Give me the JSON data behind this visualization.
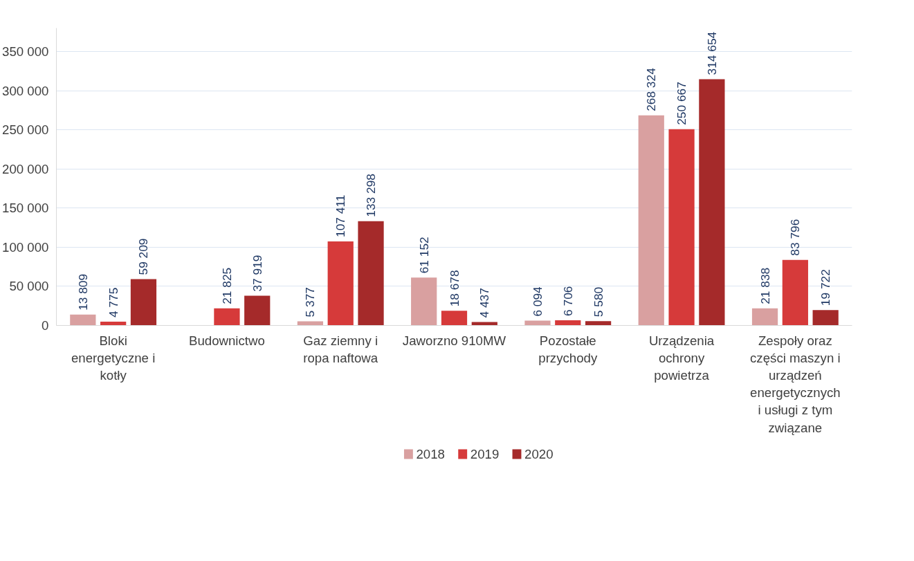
{
  "chart_data": {
    "type": "bar",
    "categories": [
      "Bloki energetyczne i kotły",
      "Budownictwo",
      "Gaz ziemny i ropa naftowa",
      "Jaworzno 910MW",
      "Pozostałe przychody",
      "Urządzenia ochrony powietrza",
      "Zespoły oraz części maszyn i urządzeń energetycznych i usługi z tym związane"
    ],
    "series": [
      {
        "name": "2018",
        "color": "#d9a0a0",
        "values": [
          13809,
          null,
          5377,
          61152,
          6094,
          268324,
          21838
        ]
      },
      {
        "name": "2019",
        "color": "#d63a3a",
        "values": [
          4775,
          21825,
          107411,
          18678,
          6706,
          250667,
          83796
        ]
      },
      {
        "name": "2020",
        "color": "#a52a2a",
        "values": [
          59209,
          37919,
          133298,
          4437,
          5580,
          314654,
          19722
        ]
      }
    ],
    "ylim": [
      0,
      380000
    ],
    "yticks": [
      0,
      {
        "value": 50000,
        "label": "50 000"
      },
      {
        "value": 100000,
        "label": "100 000"
      },
      {
        "value": 150000,
        "label": "150 000"
      },
      {
        "value": 200000,
        "label": "200 000"
      },
      {
        "value": 250000,
        "label": "250 000"
      },
      {
        "value": 300000,
        "label": "300 000"
      },
      {
        "value": 350000,
        "label": "350 000"
      }
    ],
    "grid": "y",
    "legend": "bottom",
    "data_labels": true
  }
}
